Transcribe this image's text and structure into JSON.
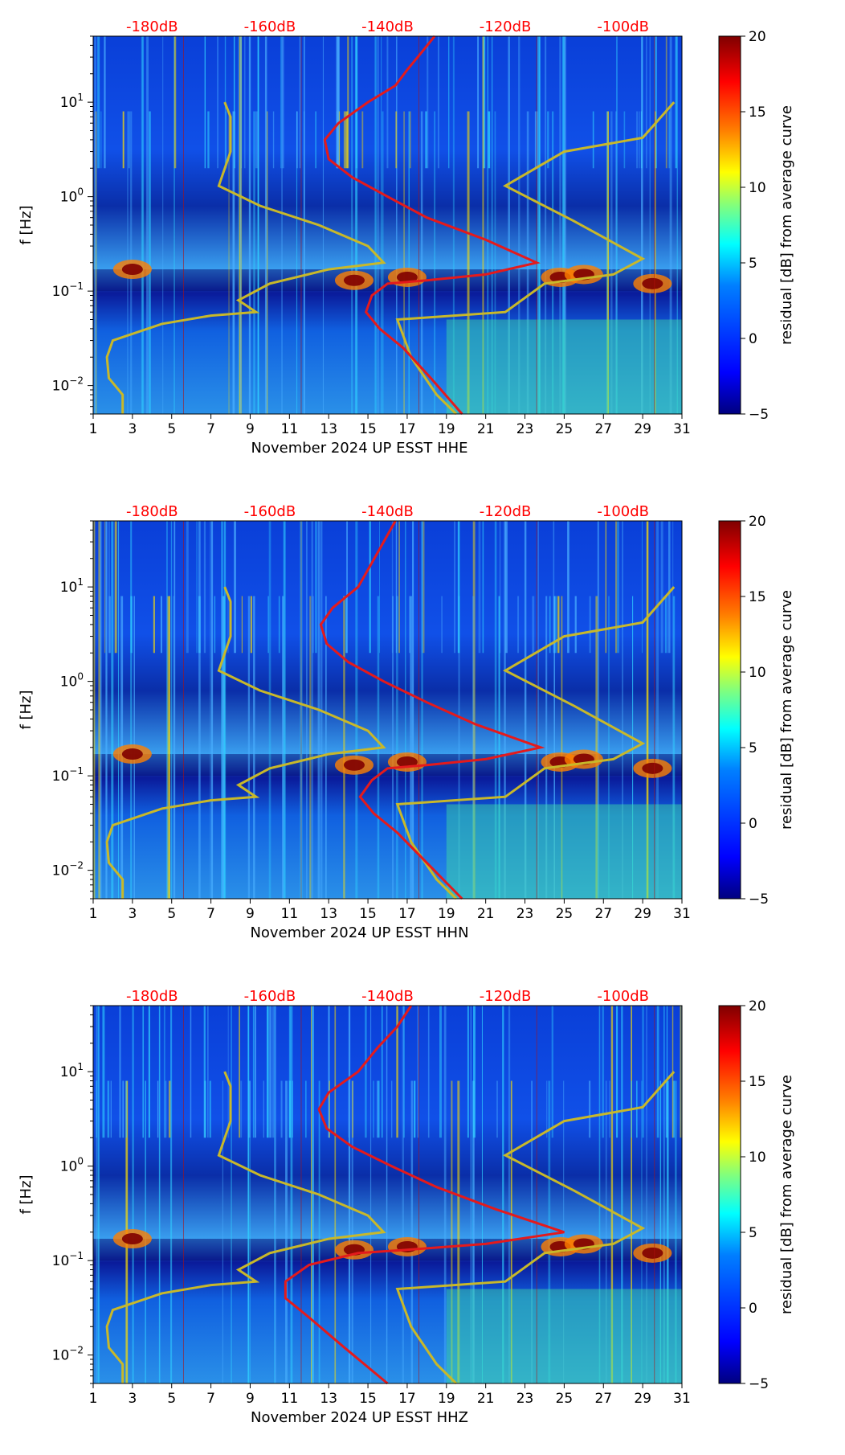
{
  "figure": {
    "colors": {
      "red_curve": "#e41a1c",
      "yellow_curve": "#c8b82a",
      "db_label": "#ff0000",
      "text": "#000000"
    },
    "colormap": [
      "#00007f",
      "#0000ff",
      "#007fff",
      "#00ffff",
      "#7fff7f",
      "#ffff00",
      "#ff7f00",
      "#ff0000",
      "#7f0000"
    ]
  },
  "chart_data": [
    {
      "type": "heatmap",
      "channel": "HHE",
      "xlabel": "November 2024 UP ESST  HHE",
      "ylabel": "f [Hz]",
      "x_ticks": [
        "1",
        "3",
        "5",
        "7",
        "9",
        "11",
        "13",
        "15",
        "17",
        "19",
        "21",
        "23",
        "25",
        "27",
        "29",
        "31"
      ],
      "xlim": [
        1,
        31
      ],
      "ylim": [
        0.005,
        50
      ],
      "y_ticks": [
        {
          "value": 0.01,
          "base": "10",
          "exp": "−2"
        },
        {
          "value": 0.1,
          "base": "10",
          "exp": "−1"
        },
        {
          "value": 1,
          "base": "10",
          "exp": "0"
        },
        {
          "value": 10,
          "base": "10",
          "exp": "1"
        }
      ],
      "top_db_labels": [
        "-180dB",
        "-160dB",
        "-140dB",
        "-120dB",
        "-100dB"
      ],
      "top_db_positions_day": [
        4,
        10,
        16,
        22,
        28
      ],
      "colorbar": {
        "label": "residual [dB] from average curve",
        "ticks": [
          "20",
          "15",
          "10",
          "5",
          "0",
          "−5"
        ],
        "range": [
          -5,
          20
        ]
      },
      "red_curve": [
        [
          18.4,
          50
        ],
        [
          17.8,
          35
        ],
        [
          17.0,
          22
        ],
        [
          16.4,
          15
        ],
        [
          15.0,
          10
        ],
        [
          13.5,
          6
        ],
        [
          12.8,
          4
        ],
        [
          13.0,
          2.5
        ],
        [
          14.2,
          1.6
        ],
        [
          16.0,
          1.0
        ],
        [
          18.0,
          0.6
        ],
        [
          21.0,
          0.35
        ],
        [
          23.6,
          0.2
        ],
        [
          21.0,
          0.15
        ],
        [
          18.0,
          0.13
        ],
        [
          16.0,
          0.12
        ],
        [
          15.2,
          0.09
        ],
        [
          14.9,
          0.06
        ],
        [
          15.6,
          0.04
        ],
        [
          16.8,
          0.025
        ],
        [
          18.2,
          0.012
        ],
        [
          19.8,
          0.005
        ]
      ],
      "yellow_curve": [
        [
          7.7,
          10
        ],
        [
          8.0,
          7
        ],
        [
          8.0,
          3
        ],
        [
          7.4,
          1.3
        ],
        [
          9.5,
          0.8
        ],
        [
          12.5,
          0.5
        ],
        [
          15.0,
          0.3
        ],
        [
          15.8,
          0.2
        ],
        [
          13.0,
          0.17
        ],
        [
          10.0,
          0.12
        ],
        [
          8.4,
          0.08
        ],
        [
          9.3,
          0.06
        ],
        [
          7.0,
          0.055
        ],
        [
          4.5,
          0.045
        ],
        [
          2.0,
          0.03
        ],
        [
          1.7,
          0.02
        ],
        [
          1.8,
          0.012
        ],
        [
          2.5,
          0.008
        ],
        [
          2.5,
          0.005
        ]
      ],
      "yellow_curve_right": [
        [
          30.6,
          10
        ],
        [
          29.0,
          4.2
        ],
        [
          25.0,
          3.0
        ],
        [
          22.0,
          1.3
        ],
        [
          25.5,
          0.55
        ],
        [
          29.0,
          0.22
        ],
        [
          27.5,
          0.15
        ],
        [
          24.0,
          0.12
        ],
        [
          22.0,
          0.06
        ],
        [
          16.5,
          0.05
        ],
        [
          17.2,
          0.02
        ],
        [
          18.5,
          0.008
        ],
        [
          19.5,
          0.005
        ]
      ]
    },
    {
      "type": "heatmap",
      "channel": "HHN",
      "xlabel": "November 2024 UP ESST  HHN",
      "ylabel": "f [Hz]",
      "x_ticks": [
        "1",
        "3",
        "5",
        "7",
        "9",
        "11",
        "13",
        "15",
        "17",
        "19",
        "21",
        "23",
        "25",
        "27",
        "29",
        "31"
      ],
      "xlim": [
        1,
        31
      ],
      "ylim": [
        0.005,
        50
      ],
      "y_ticks": [
        {
          "value": 0.01,
          "base": "10",
          "exp": "−2"
        },
        {
          "value": 0.1,
          "base": "10",
          "exp": "−1"
        },
        {
          "value": 1,
          "base": "10",
          "exp": "0"
        },
        {
          "value": 10,
          "base": "10",
          "exp": "1"
        }
      ],
      "top_db_labels": [
        "-180dB",
        "-160dB",
        "-140dB",
        "-120dB",
        "-100dB"
      ],
      "top_db_positions_day": [
        4,
        10,
        16,
        22,
        28
      ],
      "colorbar": {
        "label": "residual [dB] from average curve",
        "ticks": [
          "20",
          "15",
          "10",
          "5",
          "0",
          "−5"
        ],
        "range": [
          -5,
          20
        ]
      },
      "red_curve": [
        [
          16.4,
          50
        ],
        [
          15.8,
          30
        ],
        [
          15.2,
          18
        ],
        [
          14.5,
          10
        ],
        [
          13.2,
          6
        ],
        [
          12.6,
          4
        ],
        [
          12.9,
          2.5
        ],
        [
          14.0,
          1.6
        ],
        [
          15.8,
          1.0
        ],
        [
          18.0,
          0.6
        ],
        [
          20.5,
          0.35
        ],
        [
          23.8,
          0.2
        ],
        [
          21.0,
          0.15
        ],
        [
          18.0,
          0.13
        ],
        [
          16.0,
          0.12
        ],
        [
          15.2,
          0.09
        ],
        [
          14.6,
          0.06
        ],
        [
          15.3,
          0.04
        ],
        [
          16.5,
          0.025
        ],
        [
          18.0,
          0.012
        ],
        [
          19.8,
          0.005
        ]
      ],
      "yellow_curve": [
        [
          7.7,
          10
        ],
        [
          8.0,
          7
        ],
        [
          8.0,
          3
        ],
        [
          7.4,
          1.3
        ],
        [
          9.5,
          0.8
        ],
        [
          12.5,
          0.5
        ],
        [
          15.0,
          0.3
        ],
        [
          15.8,
          0.2
        ],
        [
          13.0,
          0.17
        ],
        [
          10.0,
          0.12
        ],
        [
          8.4,
          0.08
        ],
        [
          9.3,
          0.06
        ],
        [
          7.0,
          0.055
        ],
        [
          4.5,
          0.045
        ],
        [
          2.0,
          0.03
        ],
        [
          1.7,
          0.02
        ],
        [
          1.8,
          0.012
        ],
        [
          2.5,
          0.008
        ],
        [
          2.5,
          0.005
        ]
      ],
      "yellow_curve_right": [
        [
          30.6,
          10
        ],
        [
          29.0,
          4.2
        ],
        [
          25.0,
          3.0
        ],
        [
          22.0,
          1.3
        ],
        [
          25.5,
          0.55
        ],
        [
          29.0,
          0.22
        ],
        [
          27.5,
          0.15
        ],
        [
          24.0,
          0.12
        ],
        [
          22.0,
          0.06
        ],
        [
          16.5,
          0.05
        ],
        [
          17.2,
          0.02
        ],
        [
          18.5,
          0.008
        ],
        [
          19.5,
          0.005
        ]
      ]
    },
    {
      "type": "heatmap",
      "channel": "HHZ",
      "xlabel": "November 2024 UP ESST  HHZ",
      "ylabel": "f [Hz]",
      "x_ticks": [
        "1",
        "3",
        "5",
        "7",
        "9",
        "11",
        "13",
        "15",
        "17",
        "19",
        "21",
        "23",
        "25",
        "27",
        "29",
        "31"
      ],
      "xlim": [
        1,
        31
      ],
      "ylim": [
        0.005,
        50
      ],
      "y_ticks": [
        {
          "value": 0.01,
          "base": "10",
          "exp": "−2"
        },
        {
          "value": 0.1,
          "base": "10",
          "exp": "−1"
        },
        {
          "value": 1,
          "base": "10",
          "exp": "0"
        },
        {
          "value": 10,
          "base": "10",
          "exp": "1"
        }
      ],
      "top_db_labels": [
        "-180dB",
        "-160dB",
        "-140dB",
        "-120dB",
        "-100dB"
      ],
      "top_db_positions_day": [
        4,
        10,
        16,
        22,
        28
      ],
      "colorbar": {
        "label": "residual [dB] from average curve",
        "ticks": [
          "20",
          "15",
          "10",
          "5",
          "0",
          "−5"
        ],
        "range": [
          -5,
          20
        ]
      },
      "red_curve": [
        [
          17.2,
          50
        ],
        [
          16.5,
          30
        ],
        [
          15.5,
          18
        ],
        [
          14.5,
          10
        ],
        [
          13.0,
          6
        ],
        [
          12.5,
          4
        ],
        [
          12.9,
          2.5
        ],
        [
          14.2,
          1.6
        ],
        [
          16.2,
          1.0
        ],
        [
          18.5,
          0.6
        ],
        [
          21.5,
          0.35
        ],
        [
          25.0,
          0.2
        ],
        [
          21.0,
          0.15
        ],
        [
          17.0,
          0.13
        ],
        [
          14.5,
          0.12
        ],
        [
          12.0,
          0.09
        ],
        [
          10.8,
          0.06
        ],
        [
          10.8,
          0.04
        ],
        [
          12.0,
          0.025
        ],
        [
          13.8,
          0.012
        ],
        [
          16.0,
          0.005
        ]
      ],
      "yellow_curve": [
        [
          7.7,
          10
        ],
        [
          8.0,
          7
        ],
        [
          8.0,
          3
        ],
        [
          7.4,
          1.3
        ],
        [
          9.5,
          0.8
        ],
        [
          12.5,
          0.5
        ],
        [
          15.0,
          0.3
        ],
        [
          15.8,
          0.2
        ],
        [
          13.0,
          0.17
        ],
        [
          10.0,
          0.12
        ],
        [
          8.4,
          0.08
        ],
        [
          9.3,
          0.06
        ],
        [
          7.0,
          0.055
        ],
        [
          4.5,
          0.045
        ],
        [
          2.0,
          0.03
        ],
        [
          1.7,
          0.02
        ],
        [
          1.8,
          0.012
        ],
        [
          2.5,
          0.008
        ],
        [
          2.5,
          0.005
        ]
      ],
      "yellow_curve_right": [
        [
          30.6,
          10
        ],
        [
          29.0,
          4.2
        ],
        [
          25.0,
          3.0
        ],
        [
          22.0,
          1.3
        ],
        [
          25.5,
          0.55
        ],
        [
          29.0,
          0.22
        ],
        [
          27.5,
          0.15
        ],
        [
          24.0,
          0.12
        ],
        [
          22.0,
          0.06
        ],
        [
          16.5,
          0.05
        ],
        [
          17.2,
          0.02
        ],
        [
          18.5,
          0.008
        ],
        [
          19.5,
          0.005
        ]
      ]
    }
  ]
}
